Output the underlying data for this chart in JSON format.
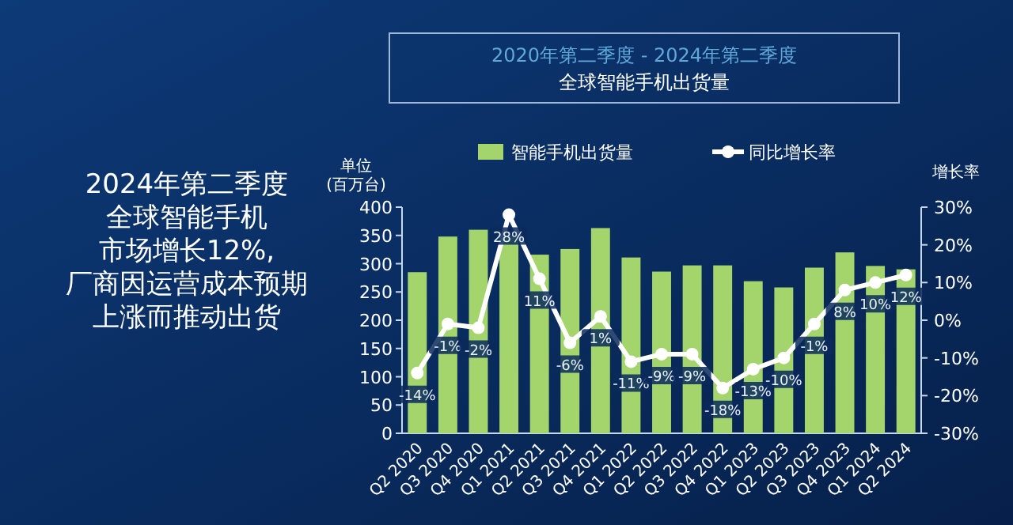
{
  "chart_data": {
    "type": "bar",
    "subtitle": "2020年第二季度 - 2024年第二季度",
    "title": "全球智能手机出货量",
    "ylabel": "单位 (百万台)",
    "y2label": "增长率",
    "annotations": [
      "2024年第二季度",
      "全球智能手机",
      "市场增长12%,",
      "厂商因运营成本预期",
      "上涨而推动出货"
    ],
    "categories": [
      "Q2 2020",
      "Q3 2020",
      "Q4 2020",
      "Q1 2021",
      "Q2 2021",
      "Q3 2021",
      "Q4 2021",
      "Q1 2022",
      "Q2 2022",
      "Q3 2022",
      "Q4 2022",
      "Q1 2023",
      "Q2 2023",
      "Q3 2023",
      "Q4 2023",
      "Q1 2024",
      "Q2 2024"
    ],
    "series": [
      {
        "name": "智能手机出货量",
        "color": "#a4d46c",
        "values": [
          285,
          348,
          360,
          350,
          316,
          326,
          363,
          311,
          286,
          297,
          297,
          269,
          258,
          293,
          320,
          296,
          290
        ]
      },
      {
        "name": "同比增长率",
        "type": "line",
        "axis": "y2",
        "color": "#ffffff",
        "marker": "circle",
        "values": [
          -14,
          -1,
          -2,
          28,
          11,
          -6,
          1,
          -11,
          -9,
          -9,
          -18,
          -13,
          -10,
          -1,
          8,
          10,
          12
        ],
        "value_labels": [
          "-14%",
          "-1%",
          "-2%",
          "28%",
          "11%",
          "-6%",
          "1%",
          "-11%",
          "-9%",
          "-9%",
          "-18%",
          "-13%",
          "-10%",
          "-1%",
          "8%",
          "10%",
          "12%"
        ]
      }
    ],
    "ylim": [
      0,
      400
    ],
    "yticks": [
      0,
      50,
      100,
      150,
      200,
      250,
      300,
      350,
      400
    ],
    "y2lim": [
      -30,
      30
    ],
    "y2ticks": [
      {
        "value": -30,
        "label": "-30%"
      },
      {
        "value": -20,
        "label": "-20%"
      },
      {
        "value": -10,
        "label": "-10%"
      },
      {
        "value": 0,
        "label": "0%"
      },
      {
        "value": 10,
        "label": "10%"
      },
      {
        "value": 20,
        "label": "20%"
      },
      {
        "value": 30,
        "label": "30%"
      }
    ],
    "legend": "top",
    "grid": false
  }
}
